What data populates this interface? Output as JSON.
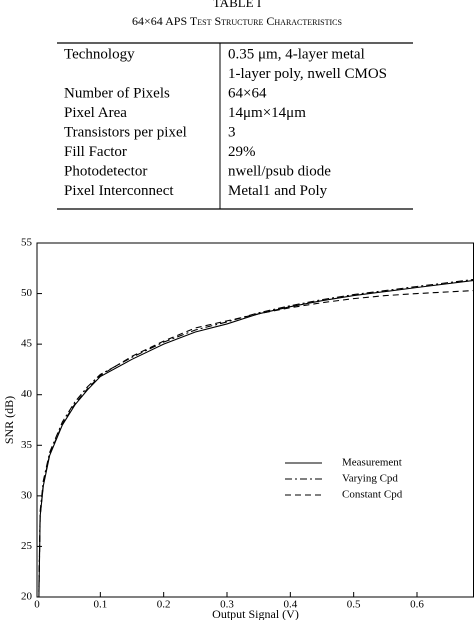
{
  "table": {
    "title": "TABLE I",
    "subtitle": "64×64 APS Test Structure Characteristics",
    "rows": [
      {
        "label": "Technology",
        "lines": [
          "0.35 μm, 4-layer metal",
          "1-layer poly, nwell CMOS"
        ]
      },
      {
        "label": "Number of Pixels",
        "lines": [
          "64×64"
        ]
      },
      {
        "label": "Pixel Area",
        "lines": [
          "14μm×14μm"
        ]
      },
      {
        "label": "Transistors per pixel",
        "lines": [
          "3"
        ]
      },
      {
        "label": "Fill Factor",
        "lines": [
          "29%"
        ]
      },
      {
        "label": "Photodetector",
        "lines": [
          "nwell/psub diode"
        ]
      },
      {
        "label": "Pixel Interconnect",
        "lines": [
          "Metal1 and Poly"
        ]
      }
    ]
  },
  "chart_data": {
    "type": "line",
    "xlabel": "Output Signal (V)",
    "ylabel": "SNR (dB)",
    "xlim": [
      0,
      0.69
    ],
    "ylim": [
      20,
      55
    ],
    "xticks": [
      0,
      0.1,
      0.2,
      0.3,
      0.4,
      0.5,
      0.6
    ],
    "yticks": [
      20,
      25,
      30,
      35,
      40,
      45,
      50,
      55
    ],
    "x": [
      0.003,
      0.005,
      0.01,
      0.02,
      0.04,
      0.06,
      0.08,
      0.1,
      0.15,
      0.2,
      0.25,
      0.3,
      0.35,
      0.4,
      0.45,
      0.5,
      0.55,
      0.6,
      0.69
    ],
    "series": [
      {
        "name": "Measurement",
        "color": "#000000",
        "style": "solid",
        "values": [
          20,
          28,
          31,
          34,
          37,
          39,
          40.5,
          41.8,
          43.5,
          45,
          46.2,
          47,
          48,
          48.7,
          49.3,
          49.8,
          50.2,
          50.6,
          51.3
        ]
      },
      {
        "name": "Varying Cpd",
        "color": "#000000",
        "style": "dashdot",
        "values": [
          21,
          28.5,
          31.5,
          34.3,
          37.3,
          39.3,
          40.8,
          42,
          43.7,
          45.2,
          46.4,
          47.2,
          48.1,
          48.8,
          49.4,
          49.9,
          50.3,
          50.7,
          51.4
        ]
      },
      {
        "name": "Constant Cpd",
        "color": "#000000",
        "style": "dashed",
        "values": [
          20.5,
          28,
          31.2,
          34.1,
          37.1,
          39.1,
          40.6,
          41.9,
          43.8,
          45.3,
          46.6,
          47.3,
          48,
          48.6,
          49.1,
          49.5,
          49.8,
          50,
          50.3
        ]
      }
    ]
  }
}
